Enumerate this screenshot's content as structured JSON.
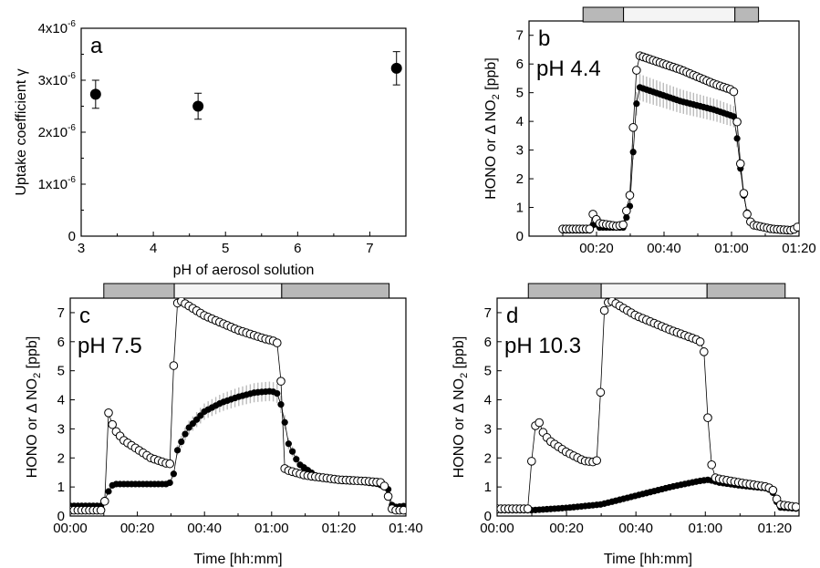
{
  "chart_data": [
    {
      "panel": "a",
      "type": "scatter",
      "letter": "a",
      "xlabel": "pH of aerosol solution",
      "ylabel": "Uptake coefficient γ",
      "xlim": [
        3,
        7.5
      ],
      "ylim": [
        0,
        4e-06
      ],
      "xticks": [
        3,
        4,
        5,
        6,
        7
      ],
      "yticks": [
        {
          "value": 0,
          "label": "0"
        },
        {
          "value": 1e-06,
          "label": "1x10",
          "exp": "-6"
        },
        {
          "value": 2e-06,
          "label": "2x10",
          "exp": "-6"
        },
        {
          "value": 3e-06,
          "label": "3x10",
          "exp": "-6"
        },
        {
          "value": 4e-06,
          "label": "4x10",
          "exp": "-6"
        }
      ],
      "points": [
        {
          "x": 3.2,
          "y": 2.73e-06,
          "err": 2.7e-07
        },
        {
          "x": 4.62,
          "y": 2.5e-06,
          "err": 2.5e-07
        },
        {
          "x": 7.37,
          "y": 3.23e-06,
          "err": 3.2e-07
        }
      ]
    },
    {
      "panel": "b",
      "type": "scatter",
      "letter": "b",
      "ph_label": "pH 4.4",
      "ylabel": "HONO or Δ NO",
      "ylabel_sub": "2",
      "ylabel_unit": " [ppb]",
      "xlim": [
        0,
        80
      ],
      "ylim": [
        0,
        7.5
      ],
      "xticks": [
        {
          "value": 20,
          "label": "00:20"
        },
        {
          "value": 40,
          "label": "00:40"
        },
        {
          "value": 60,
          "label": "01:00"
        },
        {
          "value": 80,
          "label": "01:20"
        }
      ],
      "yticks": [
        0,
        1,
        2,
        3,
        4,
        5,
        6,
        7
      ],
      "bar": [
        {
          "start": 16,
          "end": 28,
          "fill": "#b8b8b8"
        },
        {
          "start": 28,
          "end": 61,
          "fill": "#f4f4f4"
        },
        {
          "start": 61,
          "end": 68,
          "fill": "#b8b8b8"
        }
      ],
      "range": [
        10,
        80
      ],
      "hono_anchors": [
        [
          10,
          0.2
        ],
        [
          18,
          0.2
        ],
        [
          19.5,
          0.5
        ],
        [
          20.5,
          0.3
        ],
        [
          26,
          0.3
        ],
        [
          28,
          0.3
        ],
        [
          30,
          1.1
        ],
        [
          31.5,
          4.3
        ],
        [
          32.5,
          5.2
        ],
        [
          35,
          5.1
        ],
        [
          45,
          4.7
        ],
        [
          55,
          4.4
        ],
        [
          60,
          4.2
        ],
        [
          61,
          4.15
        ],
        [
          62,
          3.0
        ],
        [
          63.5,
          1.5
        ],
        [
          65,
          0.6
        ],
        [
          67,
          0.35
        ],
        [
          72,
          0.25
        ],
        [
          78,
          0.22
        ],
        [
          80,
          0.3
        ]
      ],
      "no2_anchors": [
        [
          10,
          0.25
        ],
        [
          18,
          0.25
        ],
        [
          19,
          0.8
        ],
        [
          20.5,
          0.45
        ],
        [
          26,
          0.35
        ],
        [
          28,
          0.4
        ],
        [
          30,
          1.5
        ],
        [
          31.5,
          5.5
        ],
        [
          32.5,
          6.3
        ],
        [
          35,
          6.2
        ],
        [
          45,
          5.8
        ],
        [
          55,
          5.3
        ],
        [
          60,
          5.1
        ],
        [
          61,
          5.0
        ],
        [
          61.5,
          4.2
        ],
        [
          63,
          2.0
        ],
        [
          64.5,
          0.8
        ],
        [
          66,
          0.4
        ],
        [
          72,
          0.25
        ],
        [
          78,
          0.2
        ],
        [
          80,
          0.35
        ]
      ],
      "band_width": 0.4
    },
    {
      "panel": "c",
      "type": "scatter",
      "letter": "c",
      "ph_label": "pH 7.5",
      "xlabel": "Time [hh:mm]",
      "ylabel": "HONO or Δ NO",
      "ylabel_sub": "2",
      "ylabel_unit": " [ppb]",
      "xlim": [
        0,
        100
      ],
      "ylim": [
        0,
        7.5
      ],
      "xticks": [
        {
          "value": 0,
          "label": "00:00"
        },
        {
          "value": 20,
          "label": "00:20"
        },
        {
          "value": 40,
          "label": "00:40"
        },
        {
          "value": 60,
          "label": "01:00"
        },
        {
          "value": 80,
          "label": "01:20"
        },
        {
          "value": 100,
          "label": "01:40"
        }
      ],
      "yticks": [
        0,
        1,
        2,
        3,
        4,
        5,
        6,
        7
      ],
      "bar": [
        {
          "start": 10,
          "end": 31,
          "fill": "#b8b8b8"
        },
        {
          "start": 31,
          "end": 63,
          "fill": "#f4f4f4"
        },
        {
          "start": 63,
          "end": 95,
          "fill": "#b8b8b8"
        }
      ],
      "range": [
        0,
        100
      ],
      "hono_anchors": [
        [
          0,
          0.35
        ],
        [
          9.5,
          0.35
        ],
        [
          12,
          1.0
        ],
        [
          13,
          1.1
        ],
        [
          29.5,
          1.1
        ],
        [
          31,
          1.5
        ],
        [
          32,
          2.3
        ],
        [
          35,
          3.0
        ],
        [
          40,
          3.6
        ],
        [
          45,
          3.9
        ],
        [
          50,
          4.1
        ],
        [
          55,
          4.25
        ],
        [
          60,
          4.3
        ],
        [
          62,
          4.2
        ],
        [
          63.5,
          3.5
        ],
        [
          65,
          2.5
        ],
        [
          68,
          1.8
        ],
        [
          73,
          1.4
        ],
        [
          78,
          1.25
        ],
        [
          85,
          1.2
        ],
        [
          92,
          1.1
        ],
        [
          95,
          0.9
        ],
        [
          96,
          0.3
        ],
        [
          100,
          0.35
        ]
      ],
      "no2_anchors": [
        [
          0,
          0.2
        ],
        [
          9.5,
          0.2
        ],
        [
          10.5,
          0.6
        ],
        [
          11,
          3.8
        ],
        [
          11.5,
          3.5
        ],
        [
          13,
          3.0
        ],
        [
          16,
          2.6
        ],
        [
          20,
          2.3
        ],
        [
          24,
          2.0
        ],
        [
          29,
          1.8
        ],
        [
          30,
          1.8
        ],
        [
          30.5,
          4.2
        ],
        [
          31.5,
          7.3
        ],
        [
          33,
          7.4
        ],
        [
          40,
          6.9
        ],
        [
          50,
          6.4
        ],
        [
          58,
          6.1
        ],
        [
          61.5,
          6.0
        ],
        [
          62.5,
          5.7
        ],
        [
          63.5,
          1.8
        ],
        [
          64,
          1.6
        ],
        [
          70,
          1.4
        ],
        [
          80,
          1.25
        ],
        [
          88,
          1.2
        ],
        [
          93,
          1.15
        ],
        [
          94,
          0.95
        ],
        [
          96,
          0.2
        ],
        [
          100,
          0.2
        ]
      ],
      "band_width": 0.35
    },
    {
      "panel": "d",
      "type": "scatter",
      "letter": "d",
      "ph_label": "pH 10.3",
      "xlabel": "Time [hh:mm]",
      "ylabel": "HONO or Δ NO",
      "ylabel_sub": "2",
      "ylabel_unit": " [ppb]",
      "xlim": [
        0,
        87
      ],
      "ylim": [
        0,
        7.5
      ],
      "xticks": [
        {
          "value": 0,
          "label": "00:00"
        },
        {
          "value": 20,
          "label": "00:20"
        },
        {
          "value": 40,
          "label": "00:40"
        },
        {
          "value": 60,
          "label": "01:00"
        },
        {
          "value": 80,
          "label": "01:20"
        }
      ],
      "yticks": [
        0,
        1,
        2,
        3,
        4,
        5,
        6,
        7
      ],
      "bar": [
        {
          "start": 9,
          "end": 30,
          "fill": "#b8b8b8"
        },
        {
          "start": 30,
          "end": 60.5,
          "fill": "#f4f4f4"
        },
        {
          "start": 60.5,
          "end": 83,
          "fill": "#b8b8b8"
        }
      ],
      "range": [
        0,
        87
      ],
      "hono_anchors": [
        [
          0,
          0.2
        ],
        [
          10,
          0.2
        ],
        [
          20,
          0.28
        ],
        [
          30,
          0.4
        ],
        [
          40,
          0.7
        ],
        [
          50,
          1.0
        ],
        [
          58,
          1.2
        ],
        [
          61,
          1.25
        ],
        [
          64,
          1.15
        ],
        [
          70,
          1.05
        ],
        [
          78,
          0.95
        ],
        [
          80,
          0.75
        ],
        [
          81,
          0.3
        ],
        [
          87,
          0.25
        ]
      ],
      "no2_anchors": [
        [
          0,
          0.25
        ],
        [
          9,
          0.25
        ],
        [
          10,
          2.0
        ],
        [
          11.5,
          3.6
        ],
        [
          12.5,
          3.0
        ],
        [
          15,
          2.6
        ],
        [
          20,
          2.2
        ],
        [
          25,
          1.9
        ],
        [
          28.5,
          1.85
        ],
        [
          29,
          2.0
        ],
        [
          30,
          4.8
        ],
        [
          31,
          7.3
        ],
        [
          33,
          7.4
        ],
        [
          40,
          6.9
        ],
        [
          50,
          6.4
        ],
        [
          58,
          6.05
        ],
        [
          59.5,
          5.9
        ],
        [
          60.5,
          3.7
        ],
        [
          62,
          1.5
        ],
        [
          63,
          1.3
        ],
        [
          70,
          1.15
        ],
        [
          78,
          1.0
        ],
        [
          80,
          0.85
        ],
        [
          81,
          0.4
        ],
        [
          87,
          0.3
        ]
      ],
      "band_width": 0.08
    }
  ]
}
